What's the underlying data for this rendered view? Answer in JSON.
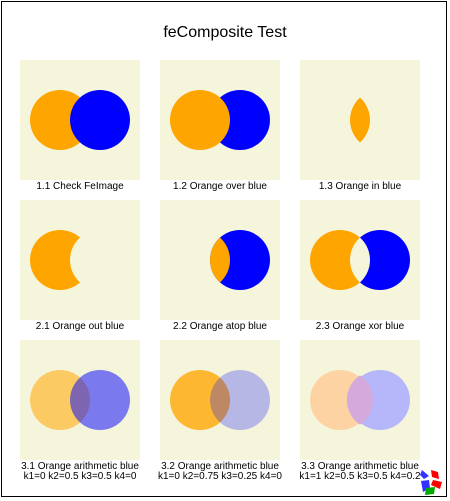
{
  "title": "feComposite Test",
  "colors": {
    "orange": "#ffa500",
    "blue": "#0000ff",
    "background": "#f5f5dc"
  },
  "tests": [
    {
      "id": "1.1",
      "caption": "1.1 Check FeImage",
      "caption2": "",
      "operator": "feimage"
    },
    {
      "id": "1.2",
      "caption": "1.2 Orange over blue",
      "caption2": "",
      "operator": "over"
    },
    {
      "id": "1.3",
      "caption": "1.3 Orange in blue",
      "caption2": "",
      "operator": "in"
    },
    {
      "id": "2.1",
      "caption": "2.1 Orange out blue",
      "caption2": "",
      "operator": "out"
    },
    {
      "id": "2.2",
      "caption": "2.2 Orange atop blue",
      "caption2": "",
      "operator": "atop"
    },
    {
      "id": "2.3",
      "caption": "2.3 Orange xor blue",
      "caption2": "",
      "operator": "xor"
    },
    {
      "id": "3.1",
      "caption": "3.1 Orange arithmetic blue",
      "caption2": "k1=0 k2=0.5 k3=0.5 k4=0",
      "operator": "arithmetic"
    },
    {
      "id": "3.2",
      "caption": "3.2 Orange arithmetic blue",
      "caption2": "k1=0 k2=0.75 k3=0.25 k4=0",
      "operator": "arithmetic"
    },
    {
      "id": "3.3",
      "caption": "3.3 Orange arithmetic blue",
      "caption2": "k1=1 k2=0.5 k3=0.5 k4=0.2",
      "operator": "arithmetic"
    }
  ],
  "logo_icon": "svg-logo-icon"
}
